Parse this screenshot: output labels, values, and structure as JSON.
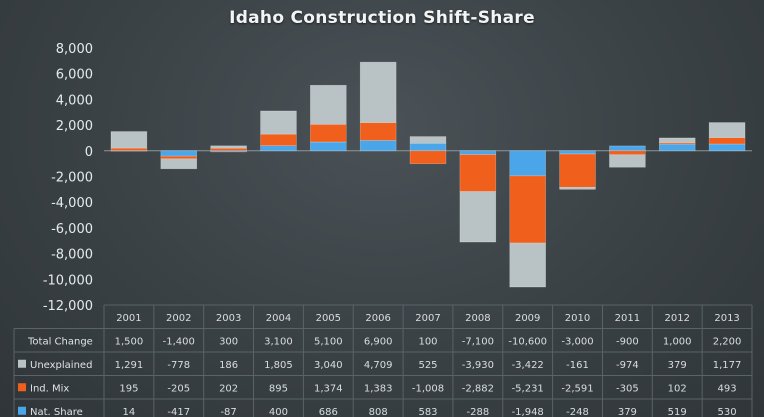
{
  "chart_data": {
    "type": "bar",
    "stacked": true,
    "title": "Idaho Construction Shift-Share",
    "categories": [
      "2001",
      "2002",
      "2003",
      "2004",
      "2005",
      "2006",
      "2007",
      "2008",
      "2009",
      "2010",
      "2011",
      "2012",
      "2013"
    ],
    "ylim": [
      -12000,
      8000
    ],
    "yticks": [
      -12000,
      -10000,
      -8000,
      -6000,
      -4000,
      -2000,
      0,
      2000,
      4000,
      6000,
      8000
    ],
    "ytick_labels": [
      "-12,000",
      "-10,000",
      "-8,000",
      "-6,000",
      "-4,000",
      "-2,000",
      "0",
      "2,000",
      "4,000",
      "6,000",
      "8,000"
    ],
    "total_change": {
      "label": "Total Change",
      "values": [
        1500,
        -1400,
        300,
        3100,
        5100,
        6900,
        100,
        -7100,
        -10600,
        -3000,
        -900,
        1000,
        2200
      ],
      "display": [
        "1,500",
        "-1,400",
        "300",
        "3,100",
        "5,100",
        "6,900",
        "100",
        "-7,100",
        "-10,600",
        "-3,000",
        "-900",
        "1,000",
        "2,200"
      ]
    },
    "series": [
      {
        "name": "Nat. Share",
        "color": "#4aa6e8",
        "values": [
          14,
          -417,
          -87,
          400,
          686,
          808,
          583,
          -288,
          -1948,
          -248,
          379,
          519,
          530
        ],
        "display": [
          "14",
          "-417",
          "-87",
          "400",
          "686",
          "808",
          "583",
          "-288",
          "-1,948",
          "-248",
          "379",
          "519",
          "530"
        ]
      },
      {
        "name": "Ind. Mix",
        "color": "#f0601c",
        "values": [
          195,
          -205,
          202,
          895,
          1374,
          1383,
          -1008,
          -2882,
          -5231,
          -2591,
          -305,
          102,
          493
        ],
        "display": [
          "195",
          "-205",
          "202",
          "895",
          "1,374",
          "1,383",
          "-1,008",
          "-2,882",
          "-5,231",
          "-2,591",
          "-305",
          "102",
          "493"
        ]
      },
      {
        "name": "Unexplained",
        "color": "#b9c2c4",
        "values": [
          1291,
          -778,
          186,
          1805,
          3040,
          4709,
          525,
          -3930,
          -3422,
          -161,
          -974,
          379,
          1177
        ],
        "display": [
          "1,291",
          "-778",
          "186",
          "1,805",
          "3,040",
          "4,709",
          "525",
          "-3,930",
          "-3,422",
          "-161",
          "-974",
          "379",
          "1,177"
        ]
      }
    ],
    "table_row_order": [
      "Unexplained",
      "Ind. Mix",
      "Nat. Share"
    ],
    "grid": false,
    "legend": "in data table"
  }
}
